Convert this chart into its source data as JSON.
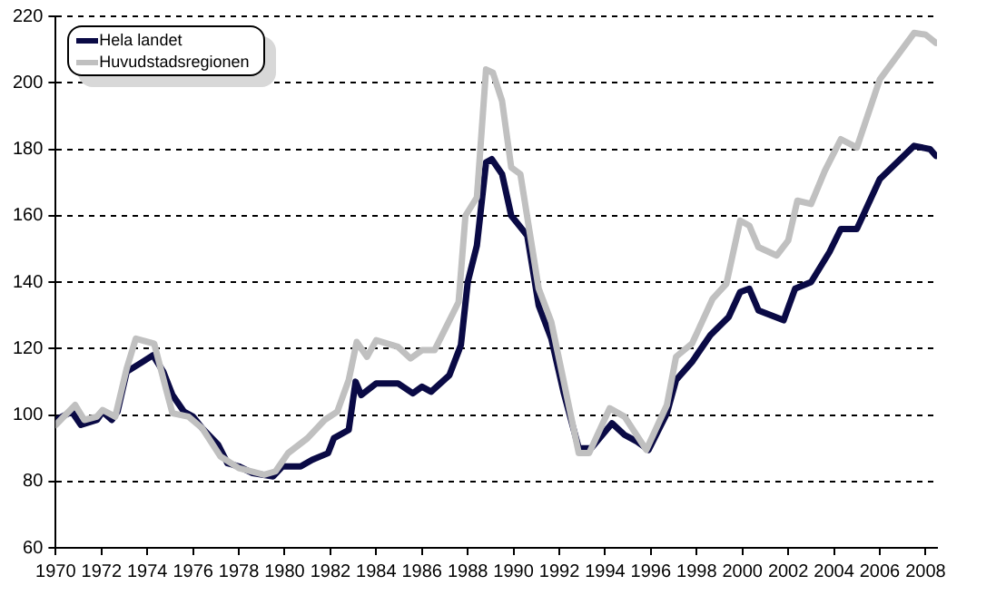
{
  "chart_data": {
    "type": "line",
    "xlim": [
      1970,
      2008.5
    ],
    "xticks": [
      1970,
      1972,
      1974,
      1976,
      1978,
      1980,
      1982,
      1984,
      1986,
      1988,
      1990,
      1992,
      1994,
      1996,
      1998,
      2000,
      2002,
      2004,
      2006,
      2008
    ],
    "ylim": [
      60,
      220
    ],
    "yticks": [
      60,
      80,
      100,
      120,
      140,
      160,
      180,
      200,
      220
    ],
    "grid": "y",
    "legend": "top left",
    "marker": "none",
    "line_style": "solid",
    "series": [
      {
        "name": "Huvudstadsregionen",
        "color": "#c0c0c0",
        "x": [
          1970,
          1970.85,
          1971.25,
          1971.8,
          1972.05,
          1972.6,
          1973.1,
          1973.5,
          1974.3,
          1974.85,
          1975.1,
          1975.8,
          1976.4,
          1977.2,
          1978,
          1979.1,
          1979.6,
          1980.15,
          1981,
          1981.75,
          1982.3,
          1982.8,
          1983.15,
          1983.6,
          1984,
          1984.95,
          1985.5,
          1986,
          1986.55,
          1987.6,
          1987.9,
          1988.4,
          1988.8,
          1989.1,
          1989.5,
          1989.9,
          1990.3,
          1991.1,
          1991.65,
          1992.85,
          1993.3,
          1994.2,
          1994.85,
          1995.8,
          1996.7,
          1997.1,
          1997.8,
          1998.7,
          1999.3,
          1999.9,
          2000.3,
          2000.7,
          2001.5,
          2002,
          2002.4,
          2003,
          2003.6,
          2004.3,
          2005,
          2006,
          2007.5,
          2008,
          2008.45
        ],
        "values": [
          97,
          103,
          98.5,
          99.5,
          101.5,
          99.5,
          114,
          123,
          121.5,
          107,
          100.5,
          99.5,
          96,
          87.5,
          84,
          82,
          83,
          88.5,
          93,
          98.5,
          101,
          110.5,
          122,
          117.5,
          122.5,
          120.5,
          117,
          119.5,
          119.5,
          134,
          160,
          165.5,
          204,
          203,
          194.5,
          174.5,
          172.5,
          138,
          128,
          88.5,
          88.5,
          102,
          99.5,
          89.5,
          103,
          117.5,
          121.5,
          135,
          139.5,
          158.5,
          157,
          150.5,
          148,
          152.5,
          164.5,
          163.5,
          173.5,
          183,
          180.5,
          201,
          215,
          214.5,
          212
        ]
      },
      {
        "name": "Hela landet",
        "color": "#0a0a45",
        "x": [
          1970,
          1970.7,
          1971.1,
          1971.8,
          1972.05,
          1972.45,
          1972.7,
          1973.1,
          1973.8,
          1974.25,
          1974.7,
          1975.1,
          1975.6,
          1976,
          1976.4,
          1977.1,
          1977.5,
          1978,
          1978.6,
          1979.5,
          1979.9,
          1980.7,
          1981.2,
          1981.9,
          1982.15,
          1982.8,
          1983.1,
          1983.35,
          1984,
          1984.95,
          1985.6,
          1986,
          1986.4,
          1987.2,
          1987.7,
          1988,
          1988.4,
          1988.8,
          1989.05,
          1989.5,
          1989.9,
          1990.6,
          1991.1,
          1991.65,
          1992.2,
          1992.85,
          1993.4,
          1994.3,
          1994.85,
          1995.4,
          1995.9,
          1996.7,
          1997.1,
          1997.8,
          1998.6,
          1999.4,
          1999.9,
          2000.3,
          2000.7,
          2001.8,
          2002.3,
          2003,
          2003.8,
          2004.3,
          2005,
          2006,
          2007.5,
          2008.2,
          2008.45
        ],
        "values": [
          98.5,
          101,
          97,
          98.5,
          101,
          98.5,
          101,
          113,
          116,
          118,
          113,
          106,
          101,
          99.5,
          96,
          91,
          85.5,
          84.5,
          82.5,
          81.5,
          84.5,
          84.5,
          86.5,
          88.5,
          93,
          95.5,
          110,
          106,
          109.5,
          109.5,
          106.5,
          108.5,
          107,
          112,
          121,
          140,
          151,
          176,
          177,
          172.5,
          160,
          154,
          133,
          123,
          106.5,
          90,
          90,
          97.5,
          94,
          92,
          89.5,
          100.5,
          110.5,
          116,
          124,
          129.5,
          137,
          138,
          131.5,
          128.5,
          138,
          140,
          149,
          156,
          156,
          171,
          181,
          180,
          178
        ]
      }
    ]
  }
}
